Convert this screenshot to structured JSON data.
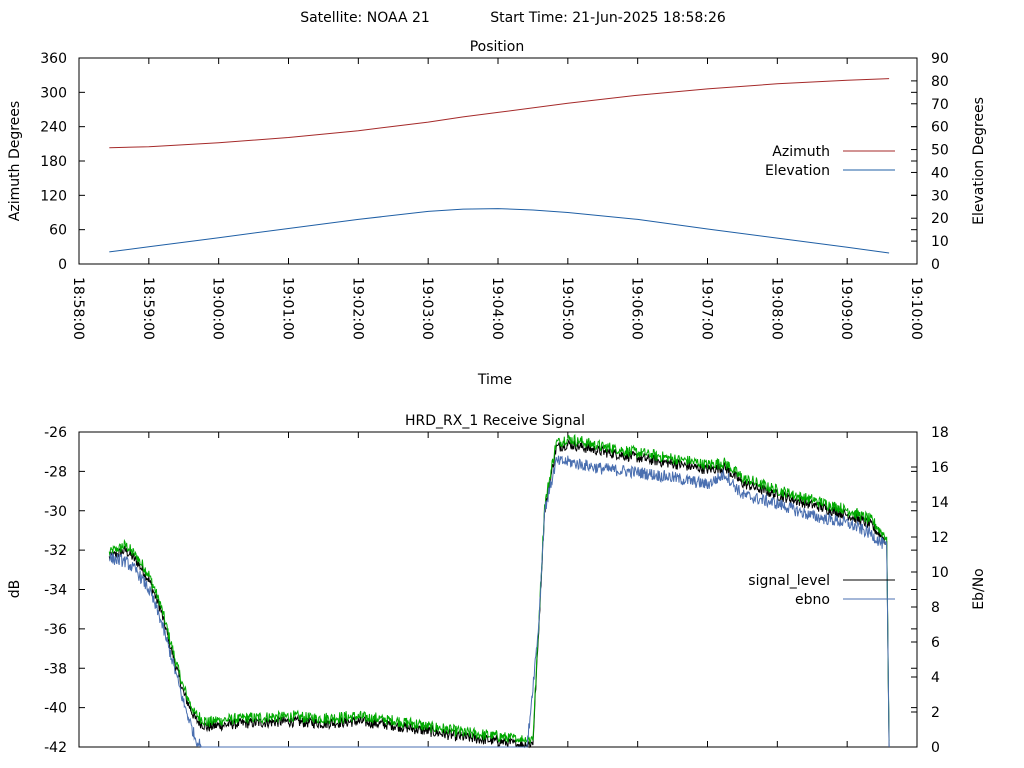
{
  "header": {
    "satellite_text": "Satellite: NOAA 21",
    "start_text": "Start Time: 21-Jun-2025 18:58:26"
  },
  "colors": {
    "azimuth": "#a52a2a",
    "elevation": "#1f5fa5",
    "signal_level": "#000000",
    "ebno": "#4a6fb0",
    "green_trace": "#00aa00",
    "red_trace": "#a52a2a",
    "axis": "#000000"
  },
  "chart_data": [
    {
      "type": "line",
      "title": "Position",
      "xlabel": "Time",
      "ylabel": "Azimuth Degrees",
      "y2label": "Elevation Degrees",
      "x_range": [
        "18:58:00",
        "19:10:00"
      ],
      "x_ticks": [
        "18:58:00",
        "18:59:00",
        "19:00:00",
        "19:01:00",
        "19:02:00",
        "19:03:00",
        "19:04:00",
        "19:05:00",
        "19:06:00",
        "19:07:00",
        "19:08:00",
        "19:09:00",
        "19:10:00"
      ],
      "ylim": [
        0,
        360
      ],
      "y_ticks": [
        0,
        60,
        120,
        180,
        240,
        300,
        360
      ],
      "y2lim": [
        0,
        90
      ],
      "y2_ticks": [
        0,
        10,
        20,
        30,
        40,
        50,
        60,
        70,
        80,
        90
      ],
      "legend_position": "right",
      "grid": false,
      "series": [
        {
          "name": "Azimuth",
          "axis": "y",
          "x": [
            "18:58:26",
            "18:59:00",
            "19:00:00",
            "19:01:00",
            "19:02:00",
            "19:03:00",
            "19:03:30",
            "19:04:00",
            "19:05:00",
            "19:06:00",
            "19:07:00",
            "19:08:00",
            "19:09:00",
            "19:09:36"
          ],
          "values": [
            203,
            205,
            212,
            221,
            233,
            248,
            257,
            265,
            281,
            295,
            306,
            315,
            321,
            324
          ]
        },
        {
          "name": "Elevation",
          "axis": "y2",
          "x": [
            "18:58:26",
            "18:59:00",
            "19:00:00",
            "19:01:00",
            "19:02:00",
            "19:03:00",
            "19:03:30",
            "19:04:00",
            "19:04:30",
            "19:05:00",
            "19:06:00",
            "19:07:00",
            "19:08:00",
            "19:09:00",
            "19:09:36"
          ],
          "values": [
            5.3,
            7.5,
            11.5,
            15.5,
            19.5,
            23,
            24,
            24.2,
            23.6,
            22.5,
            19.5,
            15.3,
            11.3,
            7.3,
            4.8
          ]
        }
      ]
    },
    {
      "type": "line",
      "title": "HRD_RX_1 Receive Signal",
      "xlabel": "",
      "ylabel": "dB",
      "y2label": "Eb/No",
      "x_range": [
        "18:58:00",
        "19:10:00"
      ],
      "ylim": [
        -42,
        -26
      ],
      "y_ticks": [
        -42,
        -40,
        -38,
        -36,
        -34,
        -32,
        -30,
        -28,
        -26
      ],
      "y2lim": [
        0,
        18
      ],
      "y2_ticks": [
        0,
        2,
        4,
        6,
        8,
        10,
        12,
        14,
        16,
        18
      ],
      "legend_position": "right",
      "grid": false,
      "series": [
        {
          "name": "signal_level",
          "axis": "y",
          "x": [
            "18:58:26",
            "18:58:40",
            "18:58:50",
            "18:59:00",
            "18:59:10",
            "18:59:20",
            "18:59:30",
            "18:59:40",
            "18:59:50",
            "19:00:00",
            "19:00:20",
            "19:01:00",
            "19:01:30",
            "19:02:00",
            "19:02:30",
            "19:03:00",
            "19:03:30",
            "19:04:00",
            "19:04:20",
            "19:04:30",
            "19:04:35",
            "19:04:40",
            "19:04:50",
            "19:05:00",
            "19:05:30",
            "19:06:00",
            "19:06:30",
            "19:07:00",
            "19:07:15",
            "19:07:30",
            "19:08:00",
            "19:08:30",
            "19:09:00",
            "19:09:20",
            "19:09:34",
            "19:09:36"
          ],
          "values": [
            -32.4,
            -32.0,
            -32.6,
            -33.5,
            -35.0,
            -37.2,
            -39.3,
            -40.6,
            -41.0,
            -40.9,
            -40.8,
            -40.7,
            -40.8,
            -40.7,
            -40.9,
            -41.2,
            -41.5,
            -41.7,
            -41.9,
            -41.8,
            -36.0,
            -30.0,
            -26.8,
            -26.6,
            -27.0,
            -27.3,
            -27.6,
            -27.9,
            -27.8,
            -28.6,
            -29.2,
            -29.7,
            -30.2,
            -30.7,
            -31.6,
            -42.0
          ]
        },
        {
          "name": "ebno",
          "axis": "y2",
          "x": [
            "18:58:26",
            "18:58:40",
            "18:58:50",
            "18:59:00",
            "18:59:10",
            "18:59:20",
            "18:59:30",
            "18:59:40",
            "18:59:45",
            "19:04:25",
            "19:04:35",
            "19:04:40",
            "19:04:50",
            "19:05:00",
            "19:05:30",
            "19:06:00",
            "19:06:30",
            "19:07:00",
            "19:07:15",
            "19:07:30",
            "19:08:00",
            "19:08:30",
            "19:09:00",
            "19:09:20",
            "19:09:34",
            "19:09:36"
          ],
          "values": [
            10.8,
            10.6,
            10.0,
            9.0,
            7.3,
            5.0,
            2.5,
            0.5,
            0.0,
            0.0,
            7.0,
            13.5,
            16.3,
            16.3,
            15.9,
            15.7,
            15.4,
            15.0,
            15.6,
            14.4,
            13.9,
            13.2,
            12.8,
            12.2,
            11.4,
            0.0
          ]
        }
      ]
    }
  ]
}
